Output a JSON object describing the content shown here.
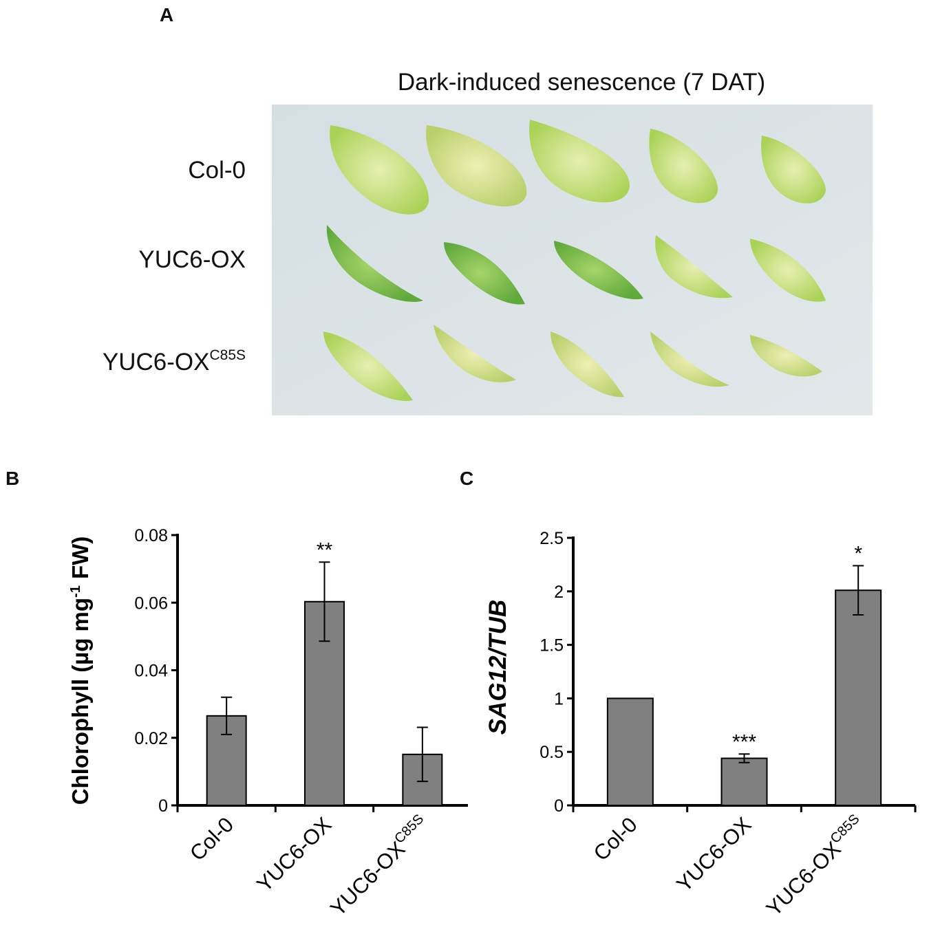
{
  "panels": {
    "a": "A",
    "b": "B",
    "c": "C"
  },
  "photo": {
    "title": "Dark-induced senescence (7 DAT)",
    "rows": [
      {
        "label": "Col-0",
        "sup": ""
      },
      {
        "label": "YUC6-OX",
        "sup": ""
      },
      {
        "label": "YUC6-OX",
        "sup": "C85S"
      }
    ]
  },
  "colors": {
    "bar": "#808080",
    "leaf_green": "#8ec63f",
    "background": "#dbe4e6"
  },
  "chart_data": [
    {
      "type": "bar",
      "ylabel": "Chlorophyll (µg mg-1 FW)",
      "ylabel_parts": {
        "pre": "Chlorophyll (µg mg",
        "sup": "-1",
        "post": " FW)"
      },
      "categories": [
        {
          "label": "Col-0",
          "sup": ""
        },
        {
          "label": "YUC6-OX",
          "sup": ""
        },
        {
          "label": "YUC6-OX",
          "sup": "C85S"
        }
      ],
      "values": [
        0.0265,
        0.0603,
        0.0151
      ],
      "errors": [
        0.0055,
        0.0117,
        0.008
      ],
      "significance": [
        "",
        "**",
        ""
      ],
      "ylim": [
        0,
        0.08
      ],
      "yticks": [
        "0",
        "0.02",
        "0.04",
        "0.06",
        "0.08"
      ],
      "ytick_values": [
        0,
        0.02,
        0.04,
        0.06,
        0.08
      ],
      "grid": false,
      "legend": false
    },
    {
      "type": "bar",
      "ylabel": "SAG12/TUB",
      "categories": [
        {
          "label": "Col-0",
          "sup": ""
        },
        {
          "label": "YUC6-OX",
          "sup": ""
        },
        {
          "label": "YUC6-OX",
          "sup": "C85S"
        }
      ],
      "values": [
        1.0,
        0.44,
        2.01
      ],
      "errors": [
        0,
        0.04,
        0.23
      ],
      "significance": [
        "",
        "***",
        "*"
      ],
      "ylim": [
        0,
        2.5
      ],
      "yticks": [
        "0",
        "0.5",
        "1",
        "1.5",
        "2",
        "2.5"
      ],
      "ytick_values": [
        0,
        0.5,
        1,
        1.5,
        2,
        2.5
      ],
      "grid": false,
      "legend": false
    }
  ]
}
